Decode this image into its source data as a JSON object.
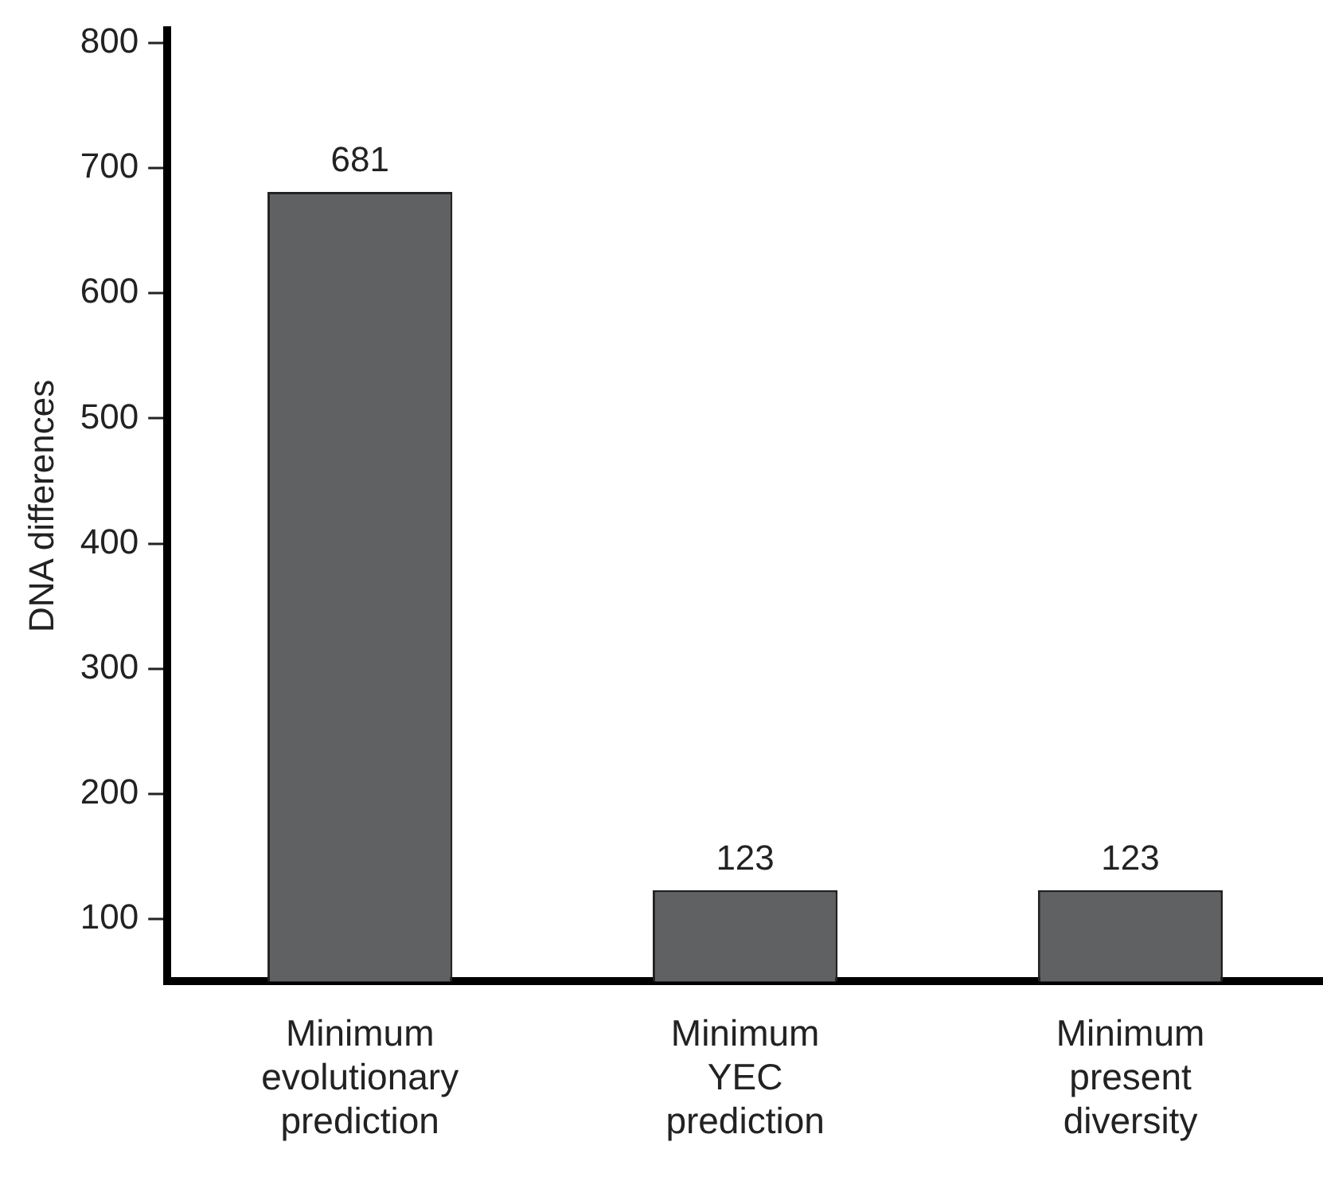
{
  "chart_data": {
    "type": "bar",
    "ylabel": "DNA differences",
    "categories": [
      "Minimum evolutionary prediction",
      "Minimum YEC prediction",
      "Minimum present diversity"
    ],
    "values": [
      681,
      123,
      123
    ],
    "color": "#606163",
    "ylim": [
      50,
      810
    ],
    "yticks": [
      100,
      200,
      300,
      400,
      500,
      600,
      700,
      800
    ],
    "grid": false,
    "data_labels": true
  }
}
